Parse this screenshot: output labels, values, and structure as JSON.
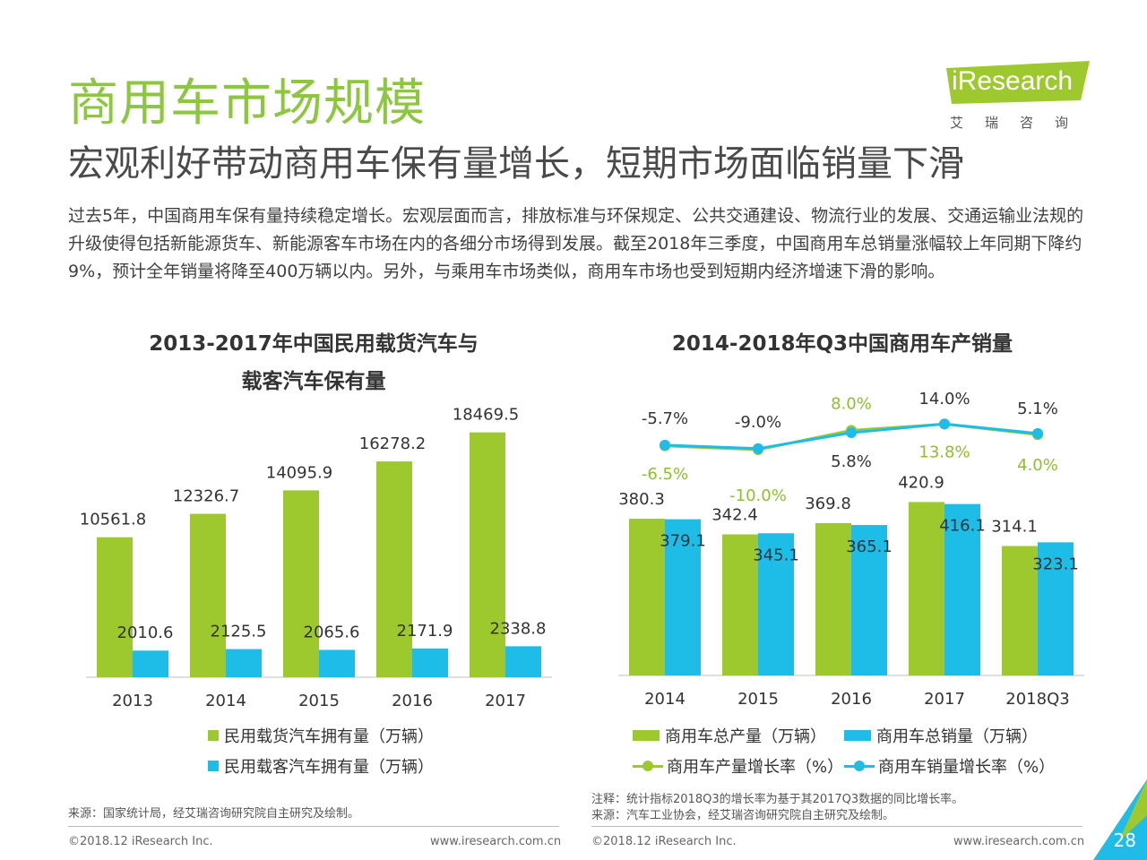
{
  "header": {
    "title": "商用车市场规模",
    "subtitle": "宏观利好带动商用车保有量增长，短期市场面临销量下滑"
  },
  "logo": {
    "word": "iResearch",
    "cn": "艾瑞咨询"
  },
  "intro": "过去5年，中国商用车保有量持续稳定增长。宏观层面而言，排放标准与环保规定、公共交通建设、物流行业的发展、交通运输业法规的升级使得包括新能源货车、新能源客车市场在内的各细分市场得到发展。截至2018年三季度，中国商用车总销量涨幅较上年同期下降约9%，预计全年销量将降至400万辆以内。另外，与乘用车市场类似，商用车市场也受到短期内经济增速下滑的影响。",
  "colors": {
    "green": "#9dc92f",
    "blue": "#1ebde8",
    "title_green": "#8dc63f"
  },
  "chart_data": [
    {
      "type": "bar",
      "title_line1": "2013-2017年中国民用载货汽车与",
      "title_line2": "载客汽车保有量",
      "categories": [
        "2013",
        "2014",
        "2015",
        "2016",
        "2017"
      ],
      "series": [
        {
          "name": "民用载货汽车拥有量（万辆）",
          "values": [
            10561.8,
            12326.7,
            14095.9,
            16278.2,
            18469.5
          ],
          "labels": [
            "10561.8",
            "12326.7",
            "14095.9",
            "16278.2",
            "18469.5"
          ]
        },
        {
          "name": "民用载客汽车拥有量（万辆）",
          "values": [
            2010.6,
            2125.5,
            2065.6,
            2171.9,
            2338.8
          ],
          "labels": [
            "2010.6",
            "2125.5",
            "2065.6",
            "2171.9",
            "2338.8"
          ]
        }
      ],
      "ylim": [
        0,
        20000
      ],
      "grid": false,
      "legend": "bottom"
    },
    {
      "type": "bar",
      "title": "2014-2018年Q3中国商用车产销量",
      "categories": [
        "2014",
        "2015",
        "2016",
        "2017",
        "2018Q3"
      ],
      "series": [
        {
          "name": "商用车总产量（万辆）",
          "values": [
            380.3,
            342.4,
            369.8,
            420.9,
            314.1
          ],
          "labels": [
            "380.3",
            "342.4",
            "369.8",
            "420.9",
            "314.1"
          ]
        },
        {
          "name": "商用车总销量（万辆）",
          "values": [
            379.1,
            345.1,
            365.1,
            416.1,
            323.1
          ],
          "labels": [
            "379.1",
            "345.1",
            "365.1",
            "416.1",
            "323.1"
          ]
        }
      ],
      "line_series": [
        {
          "name": "商用车产量增长率（%）",
          "values": [
            -6.5,
            -10.0,
            8.0,
            13.8,
            4.0
          ],
          "labels": [
            "-6.5%",
            "-10.0%",
            "8.0%",
            "13.8%",
            "4.0%"
          ]
        },
        {
          "name": "商用车销量增长率（%）",
          "values": [
            -5.7,
            -9.0,
            5.8,
            14.0,
            5.1
          ],
          "labels": [
            "-5.7%",
            "-9.0%",
            "5.8%",
            "14.0%",
            "5.1%"
          ]
        }
      ],
      "ylim": [
        0,
        500
      ],
      "grid": false,
      "legend": "bottom"
    }
  ],
  "notes": {
    "left_source": "来源：国家统计局，经艾瑞咨询研究院自主研究及绘制。",
    "right_note": "注释：统计指标2018Q3的增长率为基于其2017Q3数据的同比增长率。",
    "right_source": "来源：汽车工业协会，经艾瑞咨询研究院自主研究及绘制。"
  },
  "footer": {
    "copyright_left": "©2018.12 iResearch Inc.",
    "url_left": "www.iresearch.com.cn",
    "copyright_right": "©2018.12 iResearch Inc.",
    "url_right": "www.iresearch.com.cn",
    "page": "28"
  }
}
